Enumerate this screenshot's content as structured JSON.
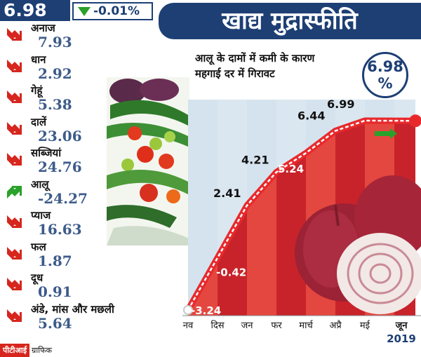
{
  "header": {
    "value": "6.98",
    "change": "-0.01%",
    "title": "खाद्य मुद्रास्फीति"
  },
  "sidebar": {
    "items": [
      {
        "name": "अनाज",
        "value": "7.93",
        "direction": "down"
      },
      {
        "name": "धान",
        "value": "2.92",
        "direction": "down"
      },
      {
        "name": "गेहूं",
        "value": "5.38",
        "direction": "down"
      },
      {
        "name": "दालें",
        "value": "23.06",
        "direction": "down"
      },
      {
        "name": "सब्जियां",
        "value": "24.76",
        "direction": "down"
      },
      {
        "name": "आलू",
        "value": "-24.27",
        "direction": "up"
      },
      {
        "name": "प्याज",
        "value": "16.63",
        "direction": "down"
      },
      {
        "name": "फल",
        "value": "1.87",
        "direction": "down"
      },
      {
        "name": "दूध",
        "value": "0.91",
        "direction": "down"
      },
      {
        "name": "अंडे, मांस और मछली",
        "value": "5.64",
        "direction": "down"
      }
    ]
  },
  "caption": {
    "line1": "आलू के दामों में कमी के कारण",
    "line2": "महगाई दर में गिरावट"
  },
  "badge": {
    "value": "6.98",
    "unit": "%"
  },
  "footer": {
    "label": "पीटीआई",
    "suffix": "ग्राफिक"
  },
  "colors": {
    "navy": "#1d3f74",
    "red": "#d6261e",
    "line_red": "#e8292c",
    "light_column": "#d5e3ee",
    "red_column": "#c8232a"
  },
  "chart_data": {
    "type": "line",
    "categories": [
      "नव",
      "दिस",
      "जन",
      "फर",
      "मार्च",
      "अप्रै",
      "मई",
      "जून"
    ],
    "year_label": "2019",
    "series": [
      {
        "values": [
          -3.24,
          -0.42,
          2.41,
          4.21,
          5.24,
          6.44,
          6.99,
          6.98
        ],
        "labels": [
          "-3.24",
          "-0.42",
          "2.41",
          "4.21",
          "5.24",
          "6.44",
          "6.99",
          ""
        ]
      }
    ],
    "ylim": [
      -3.24,
      6.99
    ]
  }
}
